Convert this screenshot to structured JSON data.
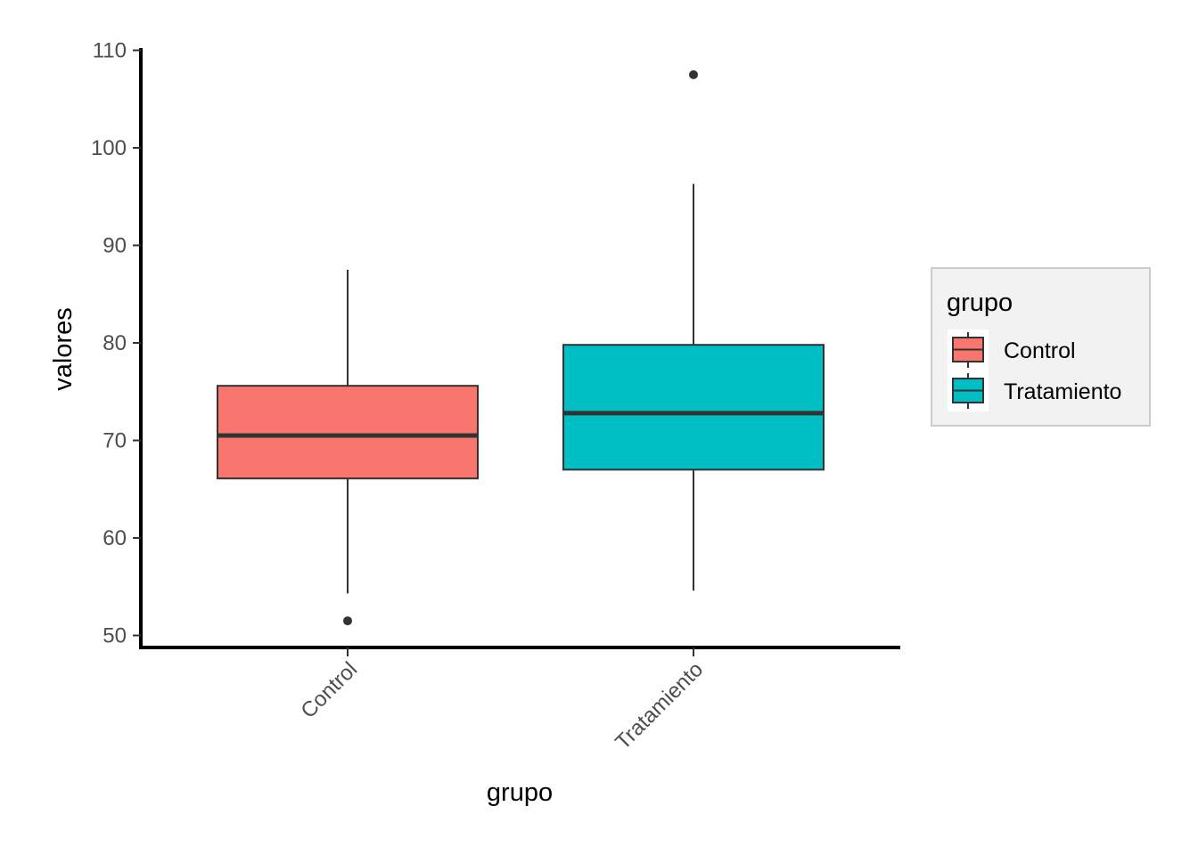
{
  "chart_data": {
    "type": "box",
    "xlabel": "grupo",
    "ylabel": "valores",
    "ylim": [
      49,
      110
    ],
    "yticks": [
      50,
      60,
      70,
      80,
      90,
      100,
      110
    ],
    "categories": [
      "Control",
      "Tratamiento"
    ],
    "boxes": [
      {
        "category": "Control",
        "whisker_low": 54.3,
        "q1": 66.1,
        "median": 70.5,
        "q3": 75.6,
        "whisker_high": 87.5,
        "outliers": [
          51.5
        ],
        "color": "#F8766D"
      },
      {
        "category": "Tratamiento",
        "whisker_low": 54.6,
        "q1": 67.0,
        "median": 72.8,
        "q3": 79.8,
        "whisker_high": 96.3,
        "outliers": [
          107.5
        ],
        "color": "#00BFC4"
      }
    ],
    "legend": {
      "title": "grupo",
      "position": "right",
      "items": [
        {
          "label": "Control",
          "color": "#F8766D"
        },
        {
          "label": "Tratamiento",
          "color": "#00BFC4"
        }
      ]
    },
    "grid": false
  }
}
